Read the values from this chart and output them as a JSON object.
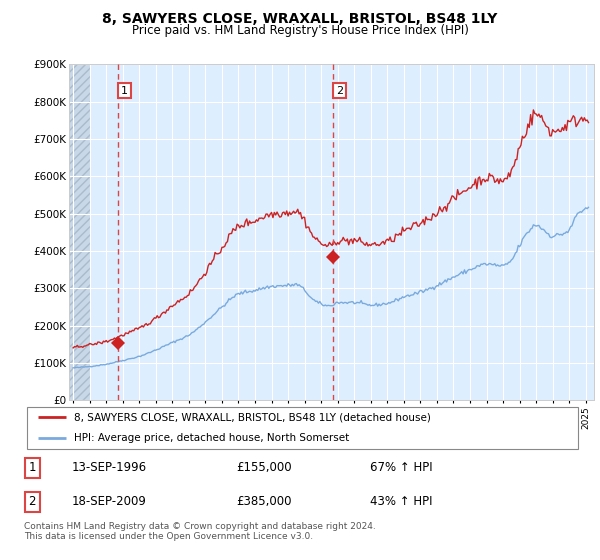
{
  "title": "8, SAWYERS CLOSE, WRAXALL, BRISTOL, BS48 1LY",
  "subtitle": "Price paid vs. HM Land Registry's House Price Index (HPI)",
  "legend_line1": "8, SAWYERS CLOSE, WRAXALL, BRISTOL, BS48 1LY (detached house)",
  "legend_line2": "HPI: Average price, detached house, North Somerset",
  "transaction1_label": "1",
  "transaction1_date": "13-SEP-1996",
  "transaction1_price": "£155,000",
  "transaction1_hpi": "67% ↑ HPI",
  "transaction2_label": "2",
  "transaction2_date": "18-SEP-2009",
  "transaction2_price": "£385,000",
  "transaction2_hpi": "43% ↑ HPI",
  "footnote": "Contains HM Land Registry data © Crown copyright and database right 2024.\nThis data is licensed under the Open Government Licence v3.0.",
  "hpi_color": "#7aaadd",
  "price_color": "#cc2222",
  "vline_color": "#dd4444",
  "chart_bg_color": "#ddeeff",
  "hatch_color": "#bbccdd",
  "ylim": [
    0,
    900000
  ],
  "yticks": [
    0,
    100000,
    200000,
    300000,
    400000,
    500000,
    600000,
    700000,
    800000,
    900000
  ],
  "ytick_labels": [
    "£0",
    "£100K",
    "£200K",
    "£300K",
    "£400K",
    "£500K",
    "£600K",
    "£700K",
    "£800K",
    "£900K"
  ],
  "xlim_start": 1993.75,
  "xlim_end": 2025.5,
  "hatch_end": 1995.0,
  "transaction1_x": 1996.7,
  "transaction1_y": 155000,
  "transaction2_x": 2009.7,
  "transaction2_y": 385000
}
